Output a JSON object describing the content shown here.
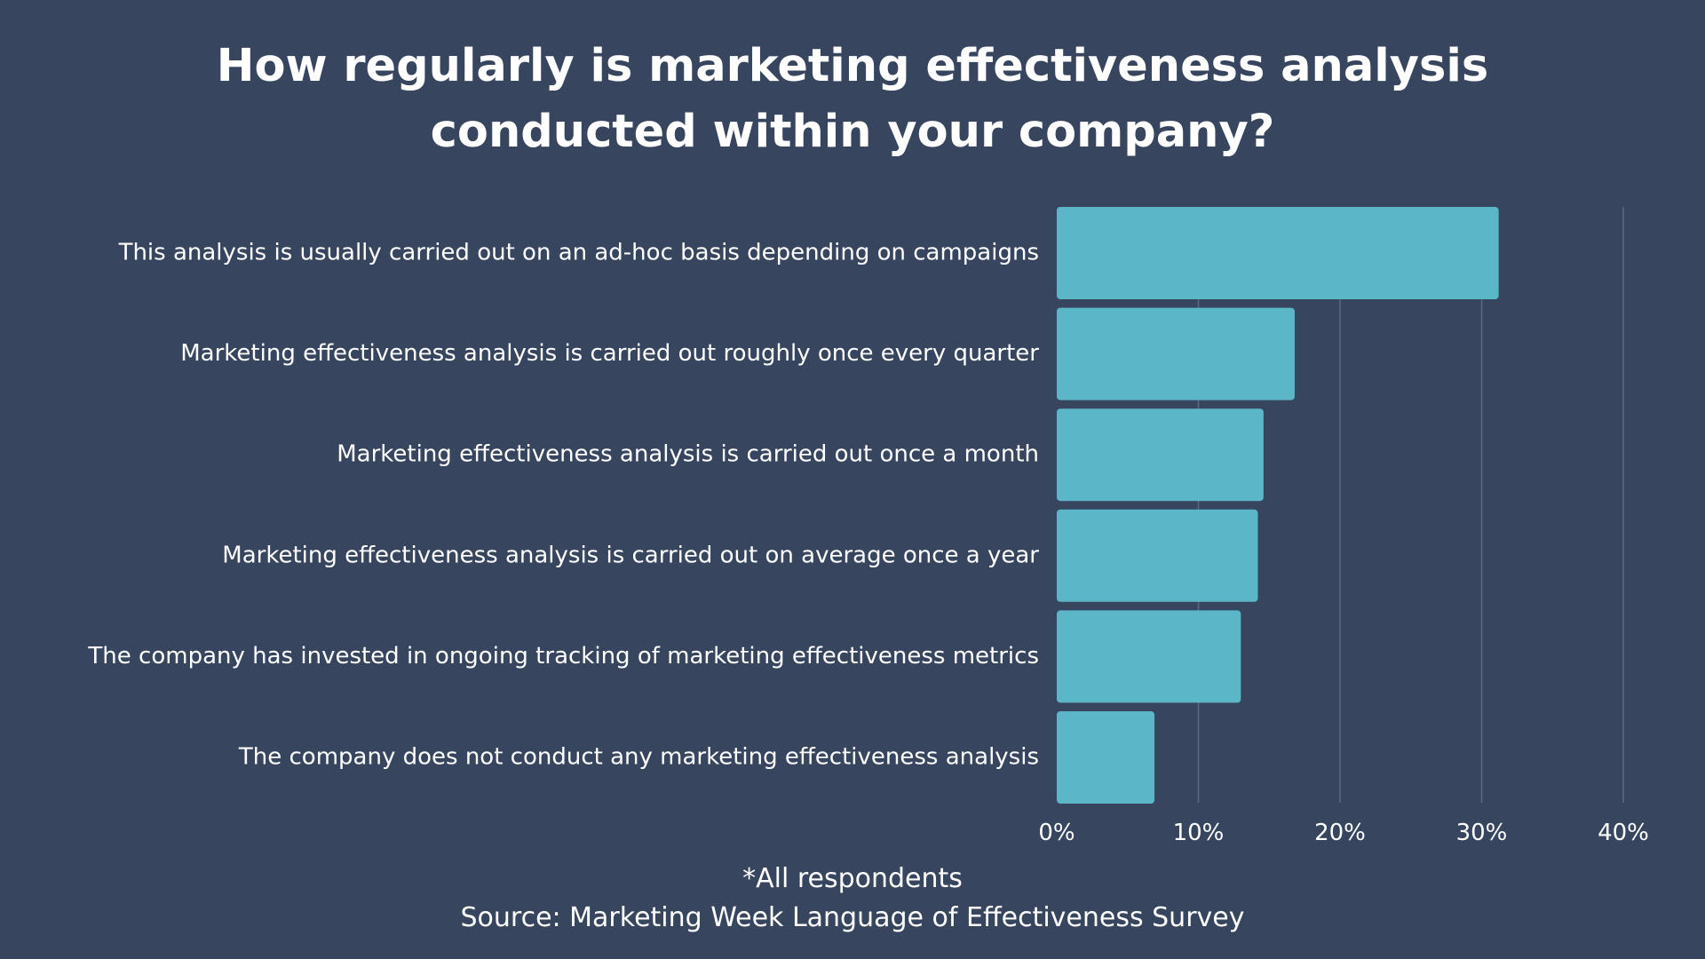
{
  "colors": {
    "background": "#37465e",
    "bar": "#5bb6c8",
    "grid": "#5a6a82",
    "text": "#ffffff"
  },
  "title_lines": [
    "How regularly is marketing effectiveness analysis",
    "conducted within your company?"
  ],
  "footer": {
    "note": "*All respondents",
    "source": "Source: Marketing Week Language of Effectiveness Survey"
  },
  "chart_data": {
    "type": "bar",
    "orientation": "horizontal",
    "title": "How regularly is marketing effectiveness analysis conducted within your company?",
    "categories": [
      "This analysis is usually carried out on an ad-hoc basis depending on campaigns",
      "Marketing effectiveness analysis is carried out roughly once every quarter",
      "Marketing effectiveness analysis is carried out once a month",
      "Marketing effectiveness analysis is carried out on average once a year",
      "The company has invested in ongoing tracking of marketing effectiveness metrics",
      "The company does not conduct any marketing effectiveness analysis"
    ],
    "values": [
      31.2,
      16.8,
      14.6,
      14.2,
      13.0,
      6.9
    ],
    "xlim": [
      0,
      40
    ],
    "xticks": [
      0,
      10,
      20,
      30,
      40
    ],
    "xtick_labels": [
      "0%",
      "10%",
      "20%",
      "30%",
      "40%"
    ],
    "xlabel": "",
    "ylabel": "",
    "grid": true,
    "legend": "none"
  }
}
